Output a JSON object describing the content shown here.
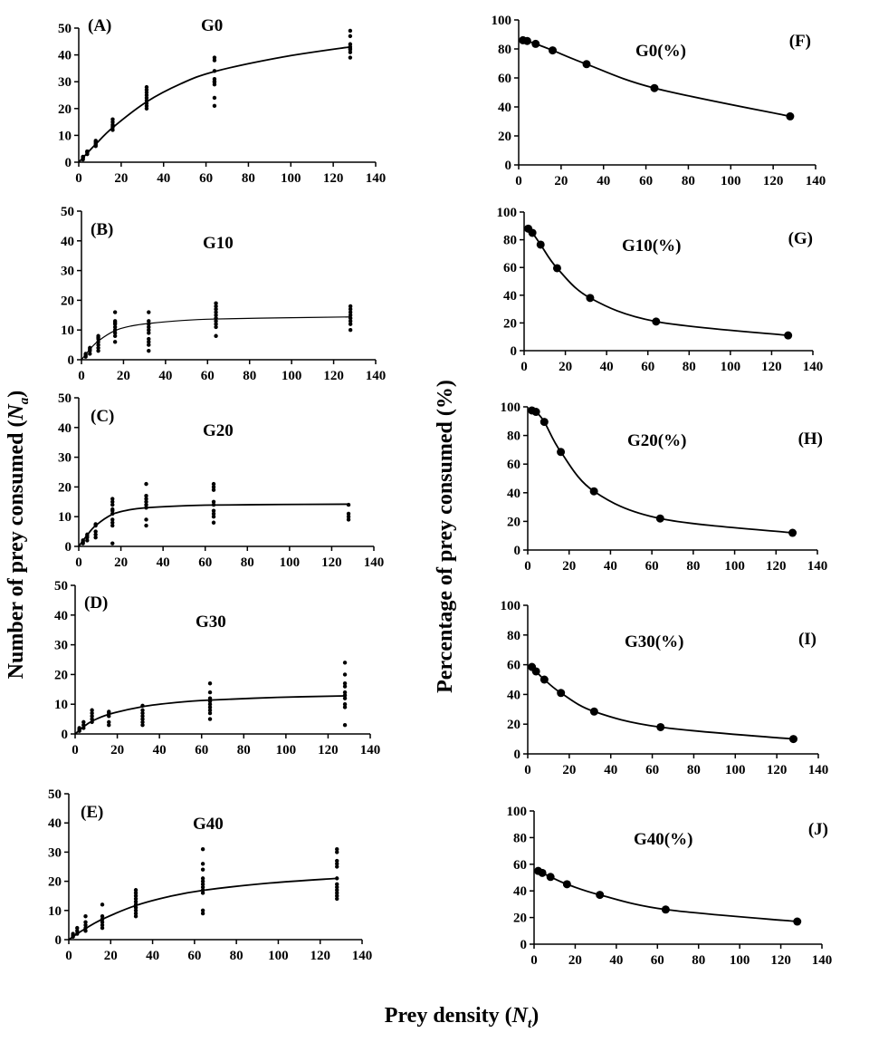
{
  "figure": {
    "left_ylabel": "Number of prey consumed (",
    "left_ylabel_var": "N",
    "left_ylabel_sub": "a",
    "right_ylabel": "Percentage of prey consumed (%)",
    "xlabel": "Prey density (",
    "xlabel_var": "N",
    "xlabel_sub": "t"
  },
  "chart_data": [
    {
      "id": "A",
      "type": "scatter",
      "panel_label": "(A)",
      "title": "G0",
      "xlabel": "Prey density (Nt)",
      "ylabel": "Number of prey consumed (Na)",
      "xlim": [
        0,
        140
      ],
      "ylim": [
        0,
        50
      ],
      "xticks": [
        0,
        20,
        40,
        60,
        80,
        100,
        120,
        140
      ],
      "yticks": [
        0,
        10,
        20,
        30,
        40,
        50
      ],
      "points": [
        {
          "x": 2,
          "y": [
            1,
            1.5,
            2,
            2,
            2
          ]
        },
        {
          "x": 4,
          "y": [
            3,
            3.5,
            4,
            4,
            4
          ]
        },
        {
          "x": 8,
          "y": [
            6,
            6.5,
            7,
            7.5,
            8
          ]
        },
        {
          "x": 16,
          "y": [
            12,
            13,
            13.5,
            14,
            15,
            16
          ]
        },
        {
          "x": 32,
          "y": [
            20,
            21,
            22,
            23,
            24,
            25,
            26,
            27,
            28
          ]
        },
        {
          "x": 64,
          "y": [
            21,
            24,
            29,
            30,
            30,
            31,
            34,
            38,
            39
          ]
        },
        {
          "x": 128,
          "y": [
            39,
            41,
            42,
            42.5,
            43,
            44,
            47,
            49
          ]
        }
      ],
      "fit": {
        "x": [
          0,
          2,
          4,
          8,
          16,
          32,
          48,
          64,
          96,
          128
        ],
        "y": [
          0,
          1.7,
          3.4,
          6.7,
          12.9,
          22.5,
          29.2,
          33.8,
          39.2,
          43
        ]
      }
    },
    {
      "id": "B",
      "type": "scatter",
      "panel_label": "(B)",
      "title": "G10",
      "xlim": [
        0,
        140
      ],
      "ylim": [
        0,
        50
      ],
      "xticks": [
        0,
        20,
        40,
        60,
        80,
        100,
        120,
        140
      ],
      "yticks": [
        0,
        10,
        20,
        30,
        40,
        50
      ],
      "points": [
        {
          "x": 2,
          "y": [
            1,
            1.5,
            2
          ]
        },
        {
          "x": 4,
          "y": [
            2,
            3,
            3.5,
            4
          ]
        },
        {
          "x": 8,
          "y": [
            3,
            4,
            5,
            6,
            7,
            7.5,
            8
          ]
        },
        {
          "x": 16,
          "y": [
            6,
            8,
            9,
            10,
            11,
            12,
            12.5,
            13,
            16
          ]
        },
        {
          "x": 32,
          "y": [
            3,
            5,
            6,
            7,
            9,
            10,
            11,
            12,
            13,
            16
          ]
        },
        {
          "x": 64,
          "y": [
            8,
            11,
            12,
            13,
            14,
            15,
            16,
            17,
            18,
            19
          ]
        },
        {
          "x": 128,
          "y": [
            10,
            12,
            13,
            14,
            15,
            16,
            17,
            18
          ]
        }
      ],
      "fit": {
        "x": [
          0,
          4,
          8,
          16,
          24,
          32,
          48,
          64,
          96,
          128
        ],
        "y": [
          0,
          3.5,
          6.3,
          9.8,
          11.4,
          12.2,
          13.2,
          13.7,
          14.1,
          14.4
        ]
      }
    },
    {
      "id": "C",
      "type": "scatter",
      "panel_label": "(C)",
      "title": "G20",
      "xlim": [
        0,
        140
      ],
      "ylim": [
        0,
        50
      ],
      "xticks": [
        0,
        20,
        40,
        60,
        80,
        100,
        120,
        140
      ],
      "yticks": [
        0,
        10,
        20,
        30,
        40,
        50
      ],
      "points": [
        {
          "x": 2,
          "y": [
            1,
            1.5,
            2,
            2
          ]
        },
        {
          "x": 4,
          "y": [
            2,
            3,
            3.5,
            4
          ]
        },
        {
          "x": 8,
          "y": [
            3,
            4,
            5,
            7,
            7.5
          ]
        },
        {
          "x": 16,
          "y": [
            1,
            7,
            8,
            9,
            11,
            12,
            12.5,
            14,
            15,
            16
          ]
        },
        {
          "x": 32,
          "y": [
            7,
            9,
            13,
            14,
            15,
            16,
            17,
            21
          ]
        },
        {
          "x": 64,
          "y": [
            8,
            10,
            11,
            12,
            14,
            15,
            19,
            20,
            21
          ]
        },
        {
          "x": 128,
          "y": [
            9,
            10,
            11,
            14
          ]
        }
      ],
      "fit": {
        "x": [
          0,
          4,
          8,
          16,
          24,
          32,
          48,
          64,
          96,
          128
        ],
        "y": [
          0,
          3.8,
          7,
          10.8,
          12.3,
          13,
          13.6,
          13.9,
          14.1,
          14.2
        ]
      }
    },
    {
      "id": "D",
      "type": "scatter",
      "panel_label": "(D)",
      "title": "G30",
      "xlim": [
        0,
        140
      ],
      "ylim": [
        0,
        50
      ],
      "xticks": [
        0,
        20,
        40,
        60,
        80,
        100,
        120,
        140
      ],
      "yticks": [
        0,
        10,
        20,
        30,
        40,
        50
      ],
      "points": [
        {
          "x": 2,
          "y": [
            1,
            1.5,
            2
          ]
        },
        {
          "x": 4,
          "y": [
            2,
            3,
            4
          ]
        },
        {
          "x": 8,
          "y": [
            4,
            5,
            6,
            7,
            8
          ]
        },
        {
          "x": 16,
          "y": [
            3,
            4,
            6,
            7,
            7.5
          ]
        },
        {
          "x": 32,
          "y": [
            3,
            4,
            5,
            6,
            7,
            8,
            9.5
          ]
        },
        {
          "x": 64,
          "y": [
            5,
            7,
            8,
            9,
            10,
            11,
            12,
            14,
            17
          ]
        },
        {
          "x": 128,
          "y": [
            3,
            9,
            10,
            12,
            13,
            14,
            16,
            17,
            20,
            24
          ]
        }
      ],
      "fit": {
        "x": [
          0,
          4,
          8,
          16,
          32,
          48,
          64,
          96,
          128
        ],
        "y": [
          0,
          2.4,
          4.3,
          6.6,
          9.2,
          10.6,
          11.4,
          12.3,
          12.8
        ]
      }
    },
    {
      "id": "E",
      "type": "scatter",
      "panel_label": "(E)",
      "title": "G40",
      "xlim": [
        0,
        140
      ],
      "ylim": [
        0,
        50
      ],
      "xticks": [
        0,
        20,
        40,
        60,
        80,
        100,
        120,
        140
      ],
      "yticks": [
        0,
        10,
        20,
        30,
        40,
        50
      ],
      "points": [
        {
          "x": 2,
          "y": [
            1,
            1.5,
            2
          ]
        },
        {
          "x": 4,
          "y": [
            2,
            3,
            4
          ]
        },
        {
          "x": 8,
          "y": [
            3,
            4,
            5,
            6,
            8
          ]
        },
        {
          "x": 16,
          "y": [
            4,
            5,
            6,
            7,
            8,
            12
          ]
        },
        {
          "x": 32,
          "y": [
            8,
            9,
            10,
            11,
            12,
            13,
            14,
            15,
            16,
            17
          ]
        },
        {
          "x": 64,
          "y": [
            9,
            10,
            16,
            17,
            18,
            19,
            20,
            21,
            24,
            26,
            31
          ]
        },
        {
          "x": 128,
          "y": [
            14,
            15,
            16,
            17,
            18,
            19,
            21,
            25,
            26,
            27,
            30,
            31
          ]
        }
      ],
      "fit": {
        "x": [
          0,
          4,
          8,
          16,
          32,
          48,
          64,
          96,
          128
        ],
        "y": [
          0,
          2,
          3.8,
          7,
          11.7,
          14.8,
          16.9,
          19.4,
          21
        ]
      }
    },
    {
      "id": "F",
      "type": "line",
      "panel_label": "(F)",
      "title": "G0(%)",
      "xlabel": "Prey density (Nt)",
      "ylabel": "Percentage of prey consumed (%)",
      "xlim": [
        0,
        140
      ],
      "ylim": [
        0,
        100
      ],
      "xticks": [
        0,
        20,
        40,
        60,
        80,
        100,
        120,
        140
      ],
      "yticks": [
        0,
        20,
        40,
        60,
        80,
        100
      ],
      "x": [
        2,
        4,
        8,
        16,
        32,
        64,
        128
      ],
      "y": [
        86,
        85.5,
        83.5,
        79,
        69.5,
        53,
        33.5
      ]
    },
    {
      "id": "G",
      "type": "line",
      "panel_label": "(G)",
      "title": "G10(%)",
      "xlim": [
        0,
        140
      ],
      "ylim": [
        0,
        100
      ],
      "xticks": [
        0,
        20,
        40,
        60,
        80,
        100,
        120,
        140
      ],
      "yticks": [
        0,
        20,
        40,
        60,
        80,
        100
      ],
      "x": [
        2,
        4,
        8,
        16,
        32,
        64,
        128
      ],
      "y": [
        88,
        85,
        76.5,
        59.5,
        38,
        21,
        11
      ]
    },
    {
      "id": "H",
      "type": "line",
      "panel_label": "(H)",
      "title": "G20(%)",
      "xlim": [
        0,
        140
      ],
      "ylim": [
        0,
        100
      ],
      "xticks": [
        0,
        20,
        40,
        60,
        80,
        100,
        120,
        140
      ],
      "yticks": [
        0,
        20,
        40,
        60,
        80,
        100
      ],
      "x": [
        2,
        4,
        8,
        16,
        32,
        64,
        128
      ],
      "y": [
        97.5,
        96.5,
        89.5,
        68.5,
        41,
        22,
        12
      ]
    },
    {
      "id": "I",
      "type": "line",
      "panel_label": "(I)",
      "title": "G30(%)",
      "xlim": [
        0,
        140
      ],
      "ylim": [
        0,
        100
      ],
      "xticks": [
        0,
        20,
        40,
        60,
        80,
        100,
        120,
        140
      ],
      "yticks": [
        0,
        20,
        40,
        60,
        80,
        100
      ],
      "x": [
        2,
        4,
        8,
        16,
        32,
        64,
        128
      ],
      "y": [
        58.5,
        55.5,
        50,
        41,
        28.5,
        18,
        10
      ]
    },
    {
      "id": "J",
      "type": "line",
      "panel_label": "(J)",
      "title": "G40(%)",
      "xlim": [
        0,
        140
      ],
      "ylim": [
        0,
        100
      ],
      "xticks": [
        0,
        20,
        40,
        60,
        80,
        100,
        120,
        140
      ],
      "yticks": [
        0,
        20,
        40,
        60,
        80,
        100
      ],
      "x": [
        2,
        4,
        8,
        16,
        32,
        64,
        128
      ],
      "y": [
        55,
        53.5,
        50.5,
        45,
        37,
        26,
        17
      ]
    }
  ]
}
